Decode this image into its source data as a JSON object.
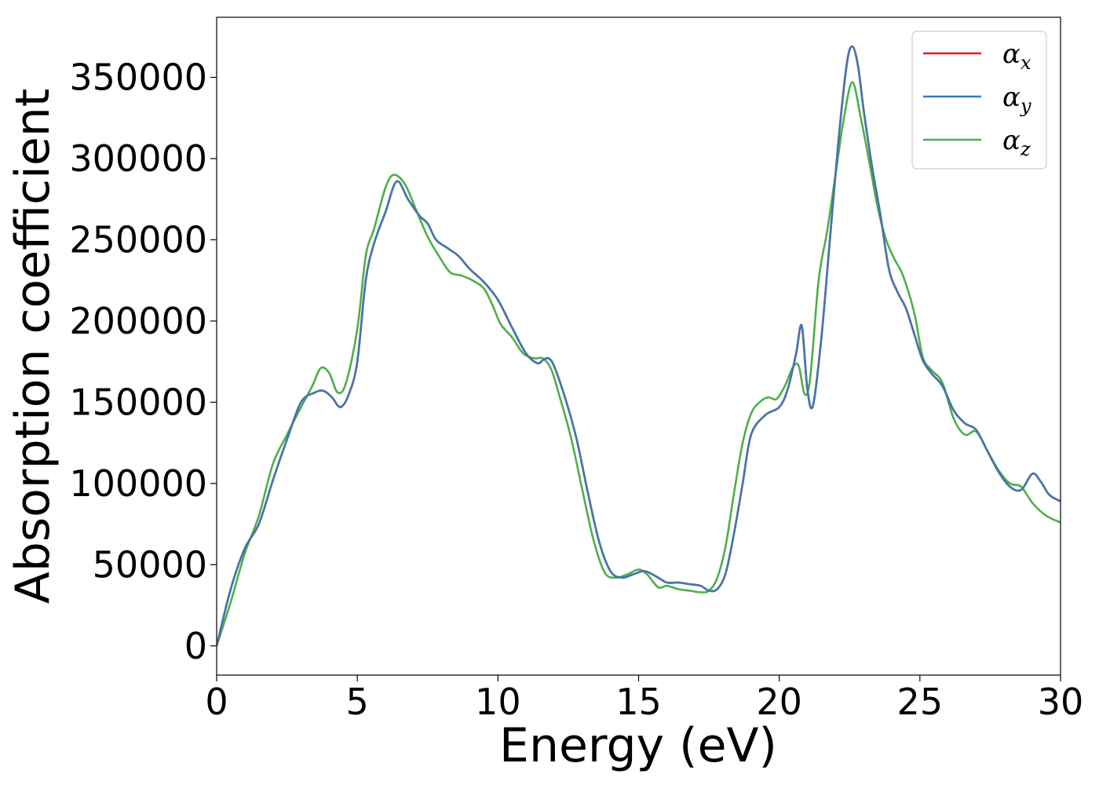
{
  "chart_data": {
    "type": "line",
    "xlabel": "Energy (eV)",
    "ylabel": "Absorption coefficient",
    "xlim": [
      0,
      30
    ],
    "ylim": [
      -18000,
      387000
    ],
    "xticks": [
      0,
      5,
      10,
      15,
      20,
      25,
      30
    ],
    "yticks": [
      0,
      50000,
      100000,
      150000,
      200000,
      250000,
      300000,
      350000
    ],
    "grid": false,
    "legend_position": "top-right",
    "series": [
      {
        "name": "αx",
        "legend_symbol": "α",
        "legend_subscript": "x",
        "color": "#e41a1c",
        "x": [
          0,
          0.5,
          1,
          1.5,
          2,
          2.5,
          3,
          3.5,
          3.8,
          4.1,
          4.4,
          4.7,
          5,
          5.3,
          5.6,
          6,
          6.4,
          6.8,
          7.2,
          7.5,
          7.8,
          8.2,
          8.6,
          9,
          9.5,
          10,
          10.5,
          11,
          11.4,
          11.6,
          11.8,
          12,
          12.4,
          12.8,
          13.2,
          13.6,
          14,
          14.4,
          14.8,
          15.2,
          15.6,
          16,
          16.4,
          16.8,
          17.2,
          17.5,
          17.8,
          18.1,
          18.4,
          18.7,
          19,
          19.5,
          20,
          20.3,
          20.6,
          20.8,
          21,
          21.2,
          21.5,
          21.8,
          22.1,
          22.4,
          22.6,
          22.8,
          23,
          23.3,
          23.6,
          23.9,
          24.2,
          24.5,
          24.8,
          25.1,
          25.4,
          25.8,
          26.2,
          26.6,
          27,
          27.4,
          27.8,
          28.2,
          28.6,
          29,
          29.3,
          29.6,
          30
        ],
        "values": [
          0,
          35000,
          60000,
          75000,
          102000,
          127000,
          150000,
          156000,
          157000,
          153000,
          147000,
          155000,
          175000,
          225000,
          248000,
          267000,
          286000,
          275000,
          265000,
          260000,
          250000,
          245000,
          240000,
          232000,
          224000,
          213000,
          196000,
          180000,
          174000,
          176000,
          177000,
          172000,
          152000,
          127000,
          94000,
          64000,
          46000,
          42000,
          44000,
          46000,
          43000,
          39000,
          39000,
          38000,
          37000,
          34000,
          35000,
          45000,
          70000,
          100000,
          130000,
          142000,
          147000,
          158000,
          180000,
          197000,
          158000,
          148000,
          190000,
          250000,
          310000,
          358000,
          369000,
          357000,
          330000,
          295000,
          265000,
          232000,
          218000,
          208000,
          192000,
          176000,
          168000,
          160000,
          145000,
          137000,
          133000,
          120000,
          107000,
          98000,
          96000,
          106000,
          101000,
          93000,
          89000
        ]
      },
      {
        "name": "αy",
        "legend_symbol": "α",
        "legend_subscript": "y",
        "color": "#3f78b0",
        "x": [
          0,
          0.5,
          1,
          1.5,
          2,
          2.5,
          3,
          3.5,
          3.8,
          4.1,
          4.4,
          4.7,
          5,
          5.3,
          5.6,
          6,
          6.4,
          6.8,
          7.2,
          7.5,
          7.8,
          8.2,
          8.6,
          9,
          9.5,
          10,
          10.5,
          11,
          11.4,
          11.6,
          11.8,
          12,
          12.4,
          12.8,
          13.2,
          13.6,
          14,
          14.4,
          14.8,
          15.2,
          15.6,
          16,
          16.4,
          16.8,
          17.2,
          17.5,
          17.8,
          18.1,
          18.4,
          18.7,
          19,
          19.5,
          20,
          20.3,
          20.6,
          20.8,
          21,
          21.2,
          21.5,
          21.8,
          22.1,
          22.4,
          22.6,
          22.8,
          23,
          23.3,
          23.6,
          23.9,
          24.2,
          24.5,
          24.8,
          25.1,
          25.4,
          25.8,
          26.2,
          26.6,
          27,
          27.4,
          27.8,
          28.2,
          28.6,
          29,
          29.3,
          29.6,
          30
        ],
        "values": [
          0,
          35000,
          60000,
          75000,
          102000,
          127000,
          150000,
          156000,
          157000,
          153000,
          147000,
          155000,
          175000,
          225000,
          248000,
          267000,
          286000,
          275000,
          265000,
          260000,
          250000,
          245000,
          240000,
          232000,
          224000,
          213000,
          196000,
          180000,
          174000,
          176000,
          177000,
          172000,
          152000,
          127000,
          94000,
          64000,
          46000,
          42000,
          44000,
          46000,
          43000,
          39000,
          39000,
          38000,
          37000,
          34000,
          35000,
          45000,
          70000,
          100000,
          130000,
          142000,
          147000,
          158000,
          180000,
          197000,
          158000,
          148000,
          190000,
          250000,
          310000,
          358000,
          369000,
          357000,
          330000,
          295000,
          265000,
          232000,
          218000,
          208000,
          192000,
          176000,
          168000,
          160000,
          145000,
          137000,
          133000,
          120000,
          107000,
          98000,
          96000,
          106000,
          101000,
          93000,
          89000
        ]
      },
      {
        "name": "αz",
        "legend_symbol": "α",
        "legend_subscript": "z",
        "color": "#4daf4a",
        "x": [
          0,
          0.5,
          1,
          1.5,
          2,
          2.5,
          3,
          3.4,
          3.7,
          4,
          4.3,
          4.6,
          5,
          5.3,
          5.6,
          6,
          6.3,
          6.7,
          7.1,
          7.5,
          7.9,
          8.3,
          8.7,
          9.1,
          9.5,
          9.8,
          10.1,
          10.5,
          10.9,
          11.3,
          11.6,
          11.9,
          12.2,
          12.6,
          13,
          13.4,
          13.8,
          14.2,
          14.6,
          15,
          15.3,
          15.7,
          16,
          16.4,
          16.8,
          17.2,
          17.5,
          17.8,
          18.1,
          18.4,
          18.7,
          19,
          19.3,
          19.6,
          19.9,
          20.2,
          20.5,
          20.7,
          20.9,
          21.1,
          21.4,
          21.7,
          22,
          22.3,
          22.6,
          22.9,
          23.2,
          23.5,
          23.8,
          24.1,
          24.4,
          24.8,
          25.1,
          25.4,
          25.8,
          26.2,
          26.6,
          27,
          27.4,
          27.8,
          28.2,
          28.6,
          29,
          29.5,
          30
        ],
        "values": [
          0,
          27000,
          57000,
          80000,
          112000,
          130000,
          147000,
          160000,
          171000,
          168000,
          156000,
          162000,
          195000,
          240000,
          257000,
          282000,
          290000,
          284000,
          268000,
          252000,
          240000,
          230000,
          228000,
          225000,
          220000,
          210000,
          198000,
          190000,
          180000,
          177000,
          177000,
          170000,
          153000,
          128000,
          96000,
          65000,
          45000,
          42000,
          44000,
          47000,
          44000,
          36000,
          37000,
          35000,
          34000,
          33000,
          34000,
          42000,
          62000,
          95000,
          125000,
          143000,
          150000,
          153000,
          152000,
          160000,
          172000,
          172000,
          155000,
          165000,
          225000,
          255000,
          290000,
          325000,
          347000,
          325000,
          298000,
          270000,
          250000,
          238000,
          228000,
          205000,
          178000,
          170000,
          162000,
          140000,
          130000,
          132000,
          120000,
          108000,
          100000,
          98000,
          88000,
          80000,
          76000
        ]
      }
    ]
  }
}
